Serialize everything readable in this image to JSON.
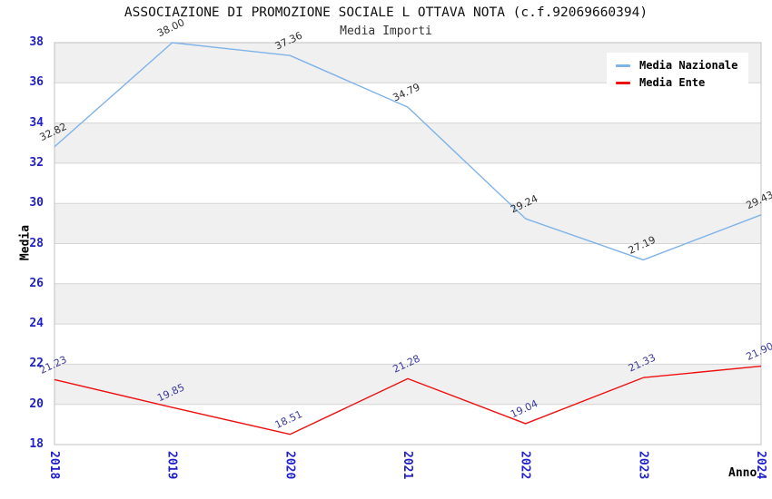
{
  "header": {
    "title": "ASSOCIAZIONE DI PROMOZIONE SOCIALE L OTTAVA NOTA (c.f.92069660394)",
    "subtitle": "Media Importi"
  },
  "chart_data": {
    "type": "line",
    "title": "ASSOCIAZIONE DI PROMOZIONE SOCIALE L OTTAVA NOTA (c.f.92069660394)",
    "subtitle": "Media Importi",
    "categories": [
      "2018",
      "2019",
      "2020",
      "2021",
      "2022",
      "2023",
      "2024"
    ],
    "series": [
      {
        "name": "Media Nazionale",
        "color": "#7fb3e8",
        "label_color": "#303030",
        "values": [
          32.82,
          38.0,
          37.36,
          34.79,
          29.24,
          27.19,
          29.43
        ]
      },
      {
        "name": "Media Ente",
        "color": "#ee1010",
        "label_color": "#3a3a9c",
        "values": [
          21.23,
          19.85,
          18.51,
          21.28,
          19.04,
          21.33,
          21.9
        ]
      }
    ],
    "xlabel": "Anno",
    "ylabel": "Media",
    "ylim": [
      18,
      38
    ],
    "y_ticks": [
      18,
      20,
      22,
      24,
      26,
      28,
      30,
      32,
      34,
      36,
      38
    ],
    "grid": "horizontal gridlines every 2 units with alternating gray bands",
    "legend_position": "top-right",
    "data_label_format": "two decimals, rotated above each point"
  },
  "colors": {
    "tick_label": "#2020cc",
    "band_fill": "#f0f0f0",
    "gridline": "#d4d4d4",
    "axis_frame": "#c0c0c0",
    "background": "#ffffff"
  }
}
